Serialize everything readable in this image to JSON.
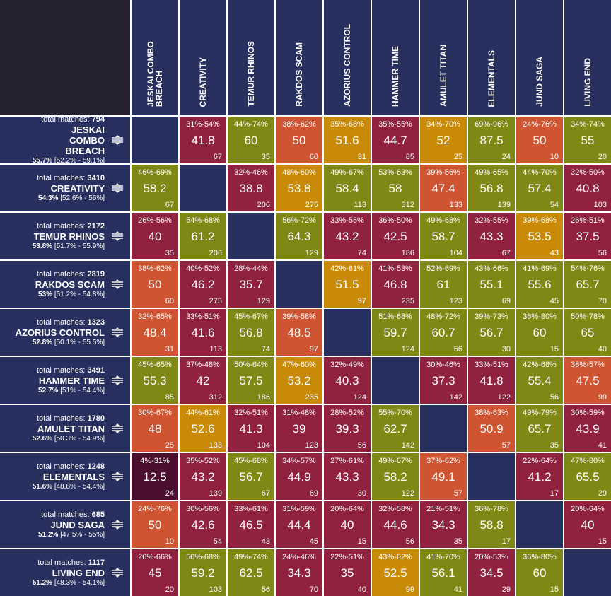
{
  "chart_data": {
    "type": "heatmap",
    "title": "",
    "row_label_prefix": "total matches:",
    "decks": [
      {
        "name": "JESKAI COMBO BREACH",
        "total_matches": "794",
        "win_rate": "55.7%",
        "win_range": "[52.2% - 59.1%]"
      },
      {
        "name": "CREATIVITY",
        "total_matches": "3410",
        "win_rate": "54.3%",
        "win_range": "[52.6% - 56%]"
      },
      {
        "name": "TEMUR RHINOS",
        "total_matches": "2172",
        "win_rate": "53.8%",
        "win_range": "[51.7% - 55.9%]"
      },
      {
        "name": "RAKDOS SCAM",
        "total_matches": "2819",
        "win_rate": "53%",
        "win_range": "[51.2% - 54.8%]"
      },
      {
        "name": "AZORIUS CONTROL",
        "total_matches": "1323",
        "win_rate": "52.8%",
        "win_range": "[50.1% - 55.5%]"
      },
      {
        "name": "HAMMER TIME",
        "total_matches": "3491",
        "win_rate": "52.7%",
        "win_range": "[51% - 54.4%]"
      },
      {
        "name": "AMULET TITAN",
        "total_matches": "1780",
        "win_rate": "52.6%",
        "win_range": "[50.3% - 54.9%]"
      },
      {
        "name": "ELEMENTALS",
        "total_matches": "1248",
        "win_rate": "51.6%",
        "win_range": "[48.8% - 54.4%]"
      },
      {
        "name": "JUND SAGA",
        "total_matches": "685",
        "win_rate": "51.2%",
        "win_range": "[47.5% - 55%]"
      },
      {
        "name": "LIVING END",
        "total_matches": "1117",
        "win_rate": "51.2%",
        "win_range": "[48.3% - 54.1%]"
      }
    ],
    "matrix": [
      [
        null,
        {
          "v": "41.8",
          "r": "31%-54%",
          "n": "67"
        },
        {
          "v": "60",
          "r": "44%-74%",
          "n": "35"
        },
        {
          "v": "50",
          "r": "38%-62%",
          "n": "60"
        },
        {
          "v": "51.6",
          "r": "35%-68%",
          "n": "31"
        },
        {
          "v": "44.7",
          "r": "35%-55%",
          "n": "85"
        },
        {
          "v": "52",
          "r": "34%-70%",
          "n": "25"
        },
        {
          "v": "87.5",
          "r": "69%-96%",
          "n": "24"
        },
        {
          "v": "50",
          "r": "24%-76%",
          "n": "10"
        },
        {
          "v": "55",
          "r": "34%-74%",
          "n": "20"
        }
      ],
      [
        {
          "v": "58.2",
          "r": "46%-69%",
          "n": "67"
        },
        null,
        {
          "v": "38.8",
          "r": "32%-46%",
          "n": "206"
        },
        {
          "v": "53.8",
          "r": "48%-60%",
          "n": "275"
        },
        {
          "v": "58.4",
          "r": "49%-67%",
          "n": "113"
        },
        {
          "v": "58",
          "r": "53%-63%",
          "n": "312"
        },
        {
          "v": "47.4",
          "r": "39%-56%",
          "n": "133"
        },
        {
          "v": "56.8",
          "r": "49%-65%",
          "n": "139"
        },
        {
          "v": "57.4",
          "r": "44%-70%",
          "n": "54"
        },
        {
          "v": "40.8",
          "r": "32%-50%",
          "n": "103"
        }
      ],
      [
        {
          "v": "40",
          "r": "26%-56%",
          "n": "35"
        },
        {
          "v": "61.2",
          "r": "54%-68%",
          "n": "206"
        },
        null,
        {
          "v": "64.3",
          "r": "56%-72%",
          "n": "129"
        },
        {
          "v": "43.2",
          "r": "33%-55%",
          "n": "74"
        },
        {
          "v": "42.5",
          "r": "36%-50%",
          "n": "186"
        },
        {
          "v": "58.7",
          "r": "49%-68%",
          "n": "104"
        },
        {
          "v": "43.3",
          "r": "32%-55%",
          "n": "67"
        },
        {
          "v": "53.5",
          "r": "39%-68%",
          "n": "43"
        },
        {
          "v": "37.5",
          "r": "26%-51%",
          "n": "56"
        }
      ],
      [
        {
          "v": "50",
          "r": "38%-62%",
          "n": "60"
        },
        {
          "v": "46.2",
          "r": "40%-52%",
          "n": "275"
        },
        {
          "v": "35.7",
          "r": "28%-44%",
          "n": "129"
        },
        null,
        {
          "v": "51.5",
          "r": "42%-61%",
          "n": "97"
        },
        {
          "v": "46.8",
          "r": "41%-53%",
          "n": "235"
        },
        {
          "v": "61",
          "r": "52%-69%",
          "n": "123"
        },
        {
          "v": "55.1",
          "r": "43%-66%",
          "n": "69"
        },
        {
          "v": "55.6",
          "r": "41%-69%",
          "n": "45"
        },
        {
          "v": "65.7",
          "r": "54%-76%",
          "n": "70"
        }
      ],
      [
        {
          "v": "48.4",
          "r": "32%-65%",
          "n": "31"
        },
        {
          "v": "41.6",
          "r": "33%-51%",
          "n": "113"
        },
        {
          "v": "56.8",
          "r": "45%-67%",
          "n": "74"
        },
        {
          "v": "48.5",
          "r": "39%-58%",
          "n": "97"
        },
        null,
        {
          "v": "59.7",
          "r": "51%-68%",
          "n": "124"
        },
        {
          "v": "60.7",
          "r": "48%-72%",
          "n": "56"
        },
        {
          "v": "56.7",
          "r": "39%-73%",
          "n": "30"
        },
        {
          "v": "60",
          "r": "36%-80%",
          "n": "15"
        },
        {
          "v": "65",
          "r": "50%-78%",
          "n": "40"
        }
      ],
      [
        {
          "v": "55.3",
          "r": "45%-65%",
          "n": "85"
        },
        {
          "v": "42",
          "r": "37%-48%",
          "n": "312"
        },
        {
          "v": "57.5",
          "r": "50%-64%",
          "n": "186"
        },
        {
          "v": "53.2",
          "r": "47%-60%",
          "n": "235"
        },
        {
          "v": "40.3",
          "r": "32%-49%",
          "n": "124"
        },
        null,
        {
          "v": "37.3",
          "r": "30%-46%",
          "n": "142"
        },
        {
          "v": "41.8",
          "r": "33%-51%",
          "n": "122"
        },
        {
          "v": "55.4",
          "r": "42%-68%",
          "n": "56"
        },
        {
          "v": "47.5",
          "r": "38%-57%",
          "n": "99"
        }
      ],
      [
        {
          "v": "48",
          "r": "30%-67%",
          "n": "25"
        },
        {
          "v": "52.6",
          "r": "44%-61%",
          "n": "133"
        },
        {
          "v": "41.3",
          "r": "32%-51%",
          "n": "104"
        },
        {
          "v": "39",
          "r": "31%-48%",
          "n": "123"
        },
        {
          "v": "39.3",
          "r": "28%-52%",
          "n": "56"
        },
        {
          "v": "62.7",
          "r": "55%-70%",
          "n": "142"
        },
        null,
        {
          "v": "50.9",
          "r": "38%-63%",
          "n": "57"
        },
        {
          "v": "65.7",
          "r": "49%-79%",
          "n": "35"
        },
        {
          "v": "43.9",
          "r": "30%-59%",
          "n": "41"
        }
      ],
      [
        {
          "v": "12.5",
          "r": "4%-31%",
          "n": "24"
        },
        {
          "v": "43.2",
          "r": "35%-52%",
          "n": "139"
        },
        {
          "v": "56.7",
          "r": "45%-68%",
          "n": "67"
        },
        {
          "v": "44.9",
          "r": "34%-57%",
          "n": "69"
        },
        {
          "v": "43.3",
          "r": "27%-61%",
          "n": "30"
        },
        {
          "v": "58.2",
          "r": "49%-67%",
          "n": "122"
        },
        {
          "v": "49.1",
          "r": "37%-62%",
          "n": "57"
        },
        null,
        {
          "v": "41.2",
          "r": "22%-64%",
          "n": "17"
        },
        {
          "v": "65.5",
          "r": "47%-80%",
          "n": "29"
        }
      ],
      [
        {
          "v": "50",
          "r": "24%-76%",
          "n": "10"
        },
        {
          "v": "42.6",
          "r": "30%-56%",
          "n": "54"
        },
        {
          "v": "46.5",
          "r": "33%-61%",
          "n": "43"
        },
        {
          "v": "44.4",
          "r": "31%-59%",
          "n": "45"
        },
        {
          "v": "40",
          "r": "20%-64%",
          "n": "15"
        },
        {
          "v": "44.6",
          "r": "32%-58%",
          "n": "56"
        },
        {
          "v": "34.3",
          "r": "21%-51%",
          "n": "35"
        },
        {
          "v": "58.8",
          "r": "36%-78%",
          "n": "17"
        },
        null,
        {
          "v": "40",
          "r": "20%-64%",
          "n": "15"
        }
      ],
      [
        {
          "v": "45",
          "r": "26%-66%",
          "n": "20"
        },
        {
          "v": "59.2",
          "r": "50%-68%",
          "n": "103"
        },
        {
          "v": "62.5",
          "r": "49%-74%",
          "n": "56"
        },
        {
          "v": "34.3",
          "r": "24%-46%",
          "n": "70"
        },
        {
          "v": "35",
          "r": "22%-51%",
          "n": "40"
        },
        {
          "v": "52.5",
          "r": "43%-62%",
          "n": "99"
        },
        {
          "v": "56.1",
          "r": "41%-70%",
          "n": "41"
        },
        {
          "v": "34.5",
          "r": "20%-53%",
          "n": "29"
        },
        {
          "v": "60",
          "r": "36%-80%",
          "n": "15"
        },
        null
      ]
    ],
    "colors": {
      "header_bg": "#27305e",
      "corner_bg": "#26212f",
      "grid_line": "#ffffff",
      "very_low": "#4a0f2e",
      "low": "#90213f",
      "mid_low": "#cf5431",
      "mid_high": "#c98a08",
      "high": "#7f8814"
    }
  }
}
